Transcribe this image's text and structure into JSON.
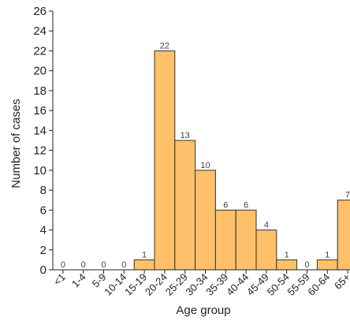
{
  "chart_data": {
    "type": "bar",
    "title": "",
    "xlabel": "Age group",
    "ylabel": "Number of cases",
    "categories": [
      "<1",
      "1-4",
      "5-9",
      "10-14",
      "15-19",
      "20-24",
      "25-29",
      "30-34",
      "35-39",
      "40-44",
      "45-49",
      "50-54",
      "55-59",
      "60-64",
      "65+"
    ],
    "values": [
      0,
      0,
      0,
      0,
      1,
      22,
      13,
      10,
      6,
      6,
      4,
      1,
      0,
      1,
      7
    ],
    "data_labels": [
      "0",
      "0",
      "0",
      "0",
      "1",
      "22",
      "13",
      "10",
      "6",
      "6",
      "4",
      "1",
      "0",
      "1",
      "7"
    ],
    "ylim": [
      0,
      26
    ],
    "yticks": [
      "0",
      "2",
      "4",
      "6",
      "8",
      "10",
      "12",
      "14",
      "16",
      "18",
      "20",
      "22",
      "24",
      "26"
    ],
    "grid": false,
    "legend": "none",
    "bar_color": "#FFC06A",
    "bar_edge_color": "#333333"
  }
}
